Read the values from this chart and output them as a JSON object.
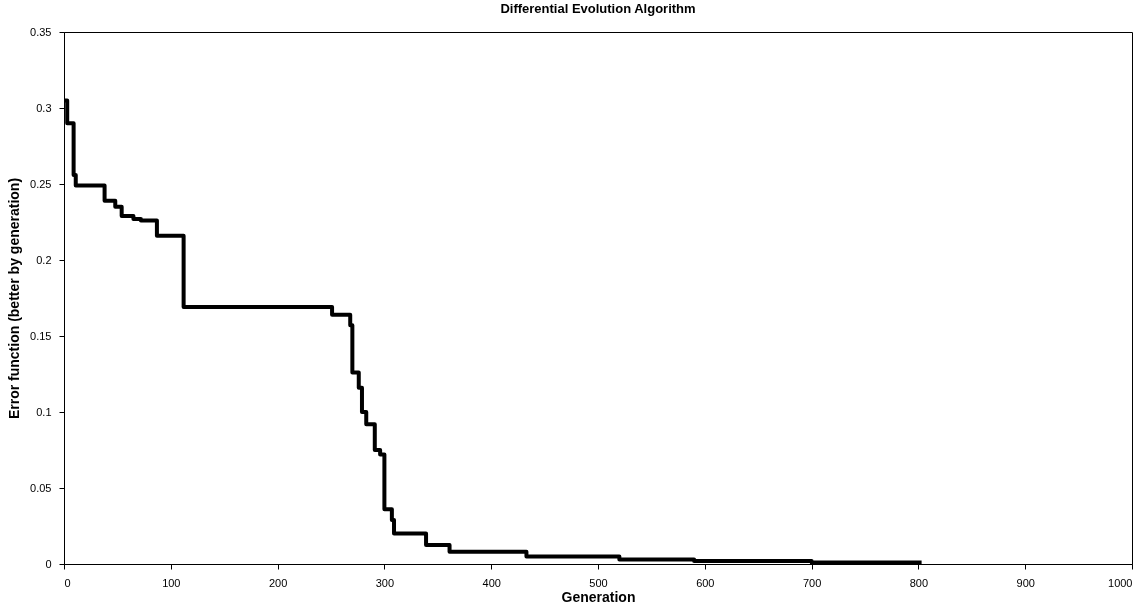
{
  "chart_data": {
    "type": "step",
    "title": "Differential Evolution Algorithm",
    "xlabel": "Generation",
    "ylabel": "Error function (better by generation)",
    "x": [
      0,
      3,
      9,
      11,
      38,
      48,
      54,
      65,
      72,
      87,
      112,
      251,
      268,
      270,
      276,
      279,
      283,
      291,
      296,
      300,
      307,
      309,
      339,
      361,
      433,
      520,
      590,
      700,
      803
    ],
    "series": [
      {
        "color": "#000000",
        "values": [
          0.305,
          0.29,
          0.256,
          0.249,
          0.239,
          0.235,
          0.229,
          0.227,
          0.226,
          0.216,
          0.169,
          0.164,
          0.157,
          0.126,
          0.116,
          0.1,
          0.092,
          0.075,
          0.072,
          0.036,
          0.029,
          0.02,
          0.0125,
          0.008,
          0.005,
          0.003,
          0.002,
          0.001,
          0.001
        ]
      }
    ],
    "xlim": [
      0,
      1000
    ],
    "xticks": [
      0,
      100,
      200,
      300,
      400,
      500,
      600,
      700,
      800,
      900,
      1000
    ],
    "ylim": [
      0,
      0.35
    ],
    "yticks": [
      0,
      0.05,
      0.1,
      0.15,
      0.2,
      0.25,
      0.3,
      0.35
    ],
    "grid": false,
    "legend": false,
    "marker": "none",
    "line_style": "solid"
  }
}
